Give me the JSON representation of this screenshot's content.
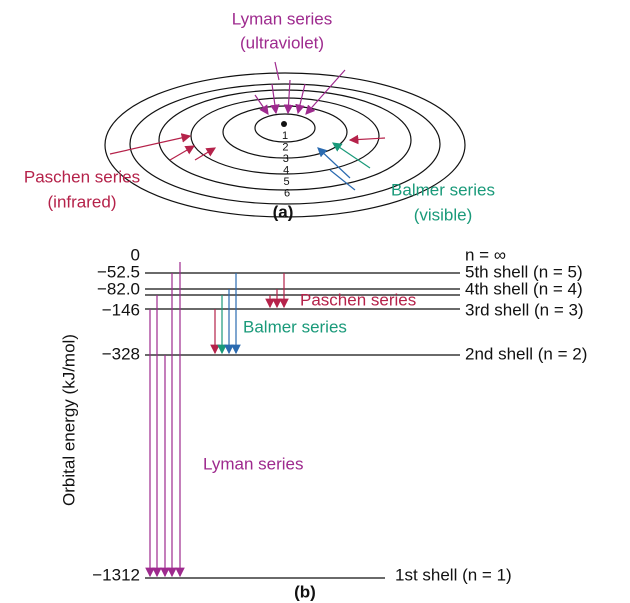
{
  "part_a": {
    "lyman_label": [
      "Lyman series",
      "(ultraviolet)"
    ],
    "paschen_label": [
      "Paschen series",
      "(infrared)"
    ],
    "balmer_label": [
      "Balmer series",
      "(visible)"
    ],
    "shell_numbers": [
      "1",
      "2",
      "3",
      "4",
      "5",
      "6"
    ],
    "caption": "(a)"
  },
  "part_b": {
    "y_axis_label": "Orbital energy (kJ/mol)",
    "levels": [
      {
        "energy": "0",
        "label": "n = ∞"
      },
      {
        "energy": "−52.5",
        "label": "5th shell (n = 5)"
      },
      {
        "energy": "−82.0",
        "label": "4th shell (n = 4)"
      },
      {
        "energy": "−146",
        "label": "3rd shell (n = 3)"
      },
      {
        "energy": "−328",
        "label": "2nd shell (n = 2)"
      },
      {
        "energy": "−1312",
        "label": "1st shell (n = 1)"
      }
    ],
    "paschen_label": "Paschen series",
    "balmer_label": "Balmer series",
    "lyman_label": "Lyman series",
    "caption": "(b)"
  }
}
